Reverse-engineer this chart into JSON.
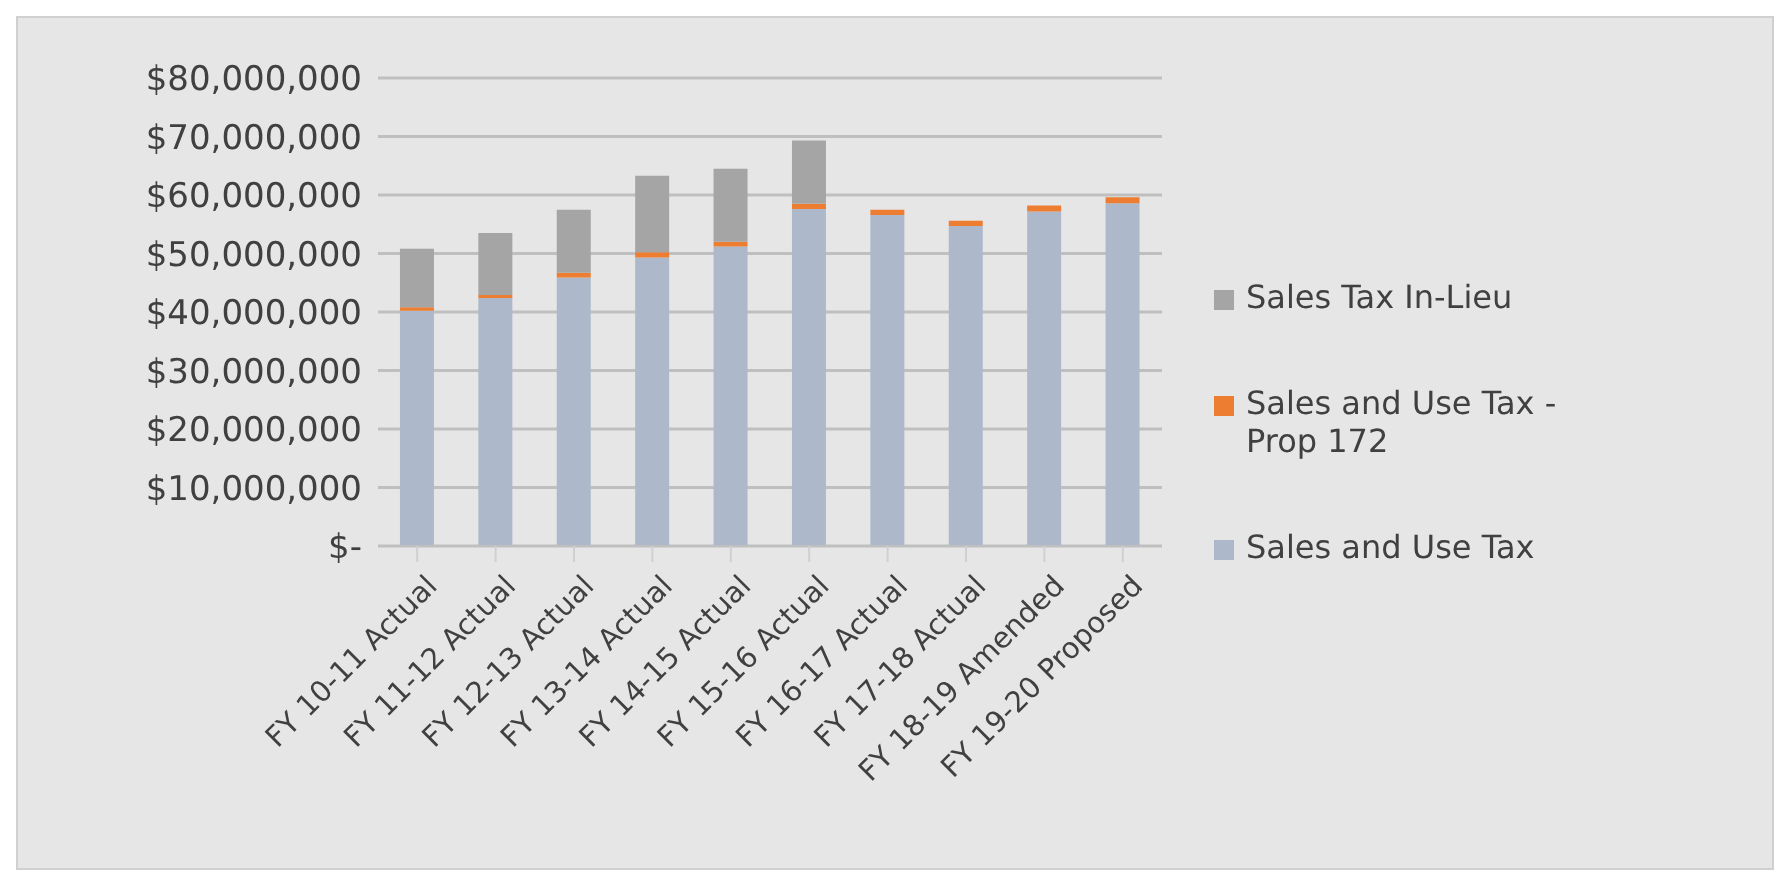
{
  "chart_data": {
    "type": "bar",
    "stacked": true,
    "categories": [
      "FY 10-11 Actual",
      "FY 11-12 Actual",
      "FY 12-13 Actual",
      "FY 13-14 Actual",
      "FY 14-15 Actual",
      "FY 15-16 Actual",
      "FY 16-17 Actual",
      "FY 17-18 Actual",
      "FY 18-19 Amended",
      "FY 19-20 Proposed"
    ],
    "series": [
      {
        "name": "Sales and Use Tax",
        "color": "#adb9ca",
        "values": [
          40200000,
          42400000,
          45900000,
          49300000,
          51200000,
          57600000,
          56600000,
          54700000,
          57200000,
          58600000
        ]
      },
      {
        "name": "Sales and Use Tax - Prop 172",
        "color": "#ed7d31",
        "values": [
          600000,
          500000,
          800000,
          900000,
          800000,
          900000,
          900000,
          900000,
          1000000,
          1000000
        ]
      },
      {
        "name": "Sales Tax In-Lieu",
        "color": "#a5a5a5",
        "values": [
          10000000,
          10600000,
          10800000,
          13100000,
          12500000,
          10800000,
          0,
          0,
          0,
          0
        ]
      }
    ],
    "ylim": [
      0,
      80000000
    ],
    "yticks": [
      {
        "value": 0,
        "label": "$-"
      },
      {
        "value": 10000000,
        "label": "$10,000,000"
      },
      {
        "value": 20000000,
        "label": "$20,000,000"
      },
      {
        "value": 30000000,
        "label": "$30,000,000"
      },
      {
        "value": 40000000,
        "label": "$40,000,000"
      },
      {
        "value": 50000000,
        "label": "$50,000,000"
      },
      {
        "value": 60000000,
        "label": "$60,000,000"
      },
      {
        "value": 70000000,
        "label": "$70,000,000"
      },
      {
        "value": 80000000,
        "label": "$80,000,000"
      }
    ],
    "grid": "y",
    "legend": "right"
  }
}
